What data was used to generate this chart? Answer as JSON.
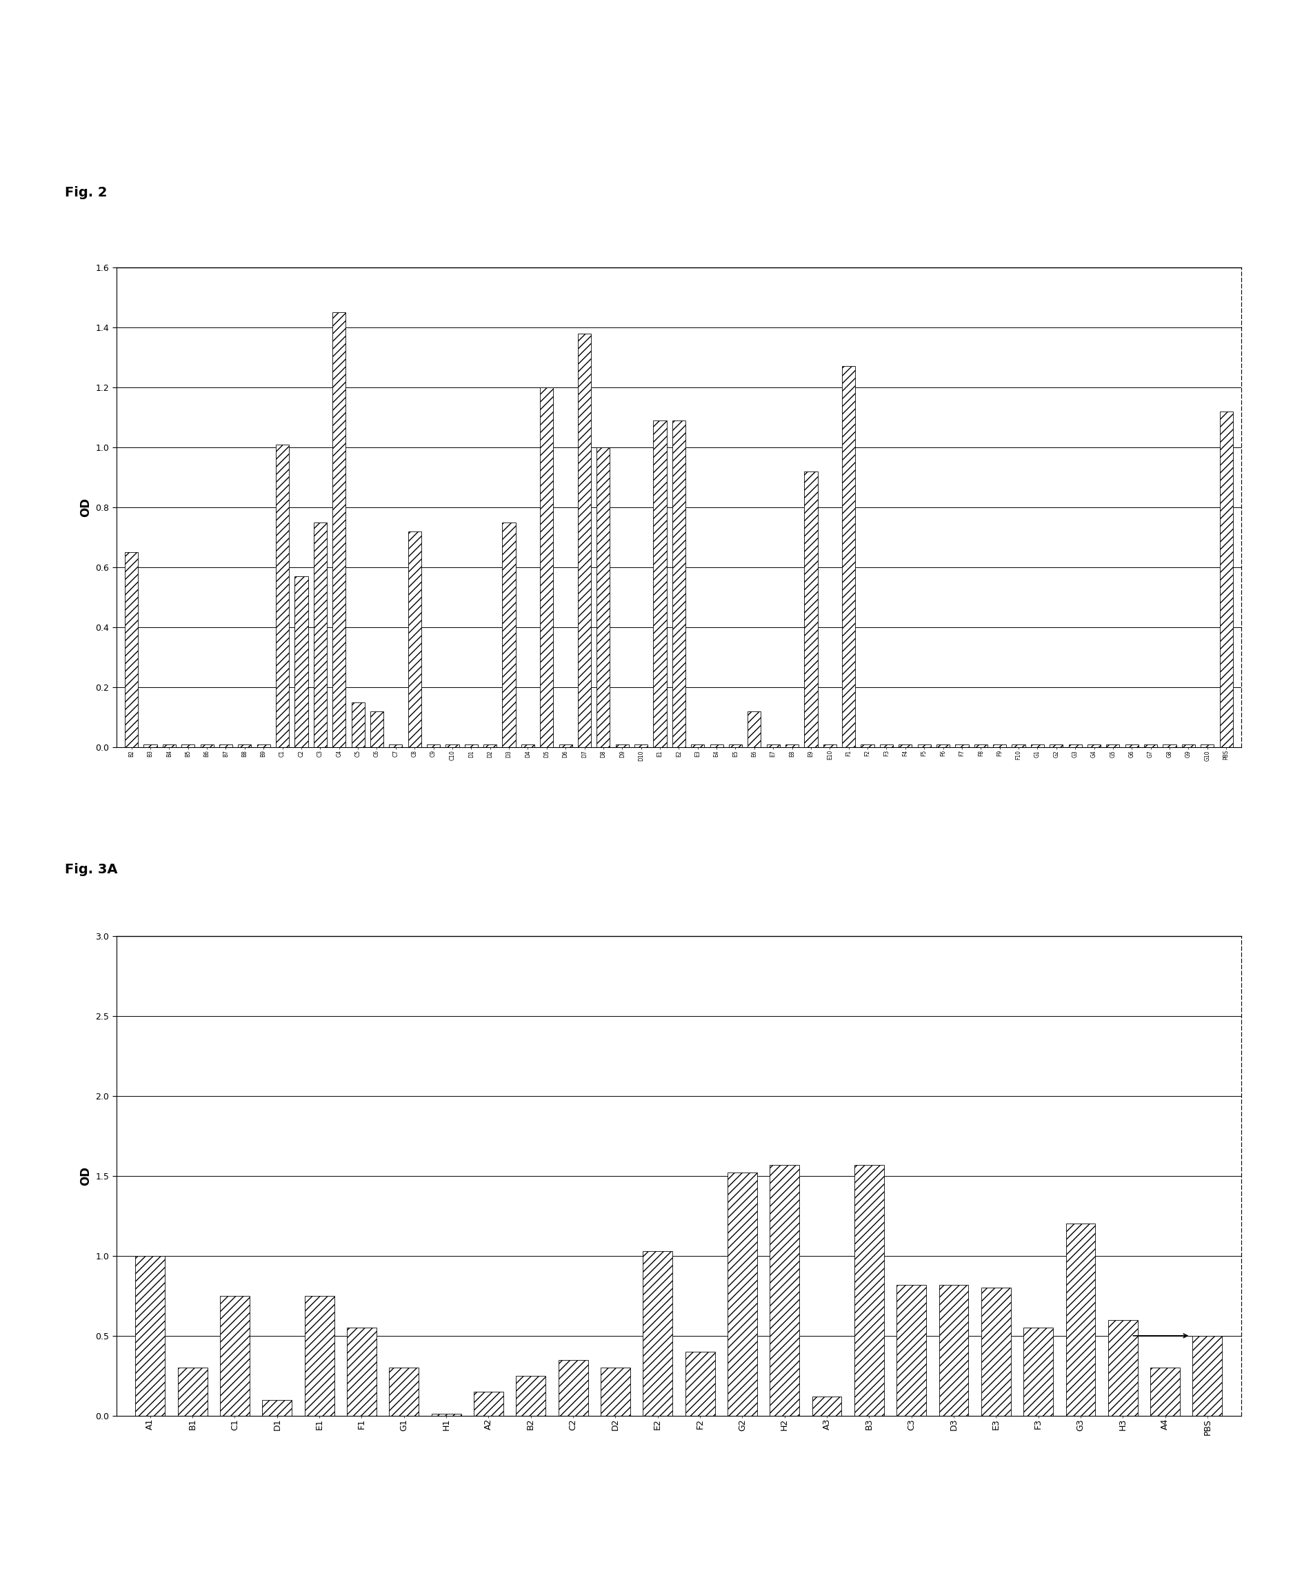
{
  "fig2": {
    "ylabel": "OD",
    "ylim": [
      0,
      1.6
    ],
    "yticks": [
      0,
      0.2,
      0.4,
      0.6,
      0.8,
      1.0,
      1.2,
      1.4,
      1.6
    ],
    "categories": [
      "B2",
      "B3",
      "B4",
      "B5",
      "B6",
      "B7",
      "B8",
      "B9",
      "C1",
      "C2",
      "C3",
      "C4",
      "C5",
      "C6",
      "C7",
      "C8",
      "C9",
      "C10",
      "D1",
      "D2",
      "D3",
      "D4",
      "D5",
      "D6",
      "D7",
      "D8",
      "D9",
      "D10",
      "E1",
      "E2",
      "E3",
      "E4",
      "E5",
      "E6",
      "E7",
      "E8",
      "E9",
      "E10",
      "F1",
      "F2",
      "F3",
      "F4",
      "F5",
      "F6",
      "F7",
      "F8",
      "F9",
      "F10",
      "G1",
      "G2",
      "G3",
      "G4",
      "G5",
      "G6",
      "G7",
      "G8",
      "G9",
      "G10",
      "PBS"
    ],
    "values": [
      0.65,
      0.01,
      0.01,
      0.01,
      0.01,
      0.01,
      0.01,
      0.01,
      1.01,
      0.57,
      0.75,
      1.45,
      0.15,
      0.12,
      0.01,
      0.72,
      0.01,
      0.01,
      0.01,
      0.01,
      0.75,
      0.01,
      1.2,
      0.01,
      1.38,
      1.0,
      0.01,
      0.01,
      1.09,
      1.09,
      0.01,
      0.01,
      0.01,
      0.12,
      0.01,
      0.01,
      0.92,
      0.01,
      1.27,
      0.01,
      0.01,
      0.01,
      0.01,
      0.01,
      0.01,
      0.01,
      0.01,
      0.01,
      0.01,
      0.01,
      0.01,
      0.01,
      0.01,
      0.01,
      0.01,
      0.01,
      0.01,
      0.01,
      1.12
    ]
  },
  "fig3a": {
    "ylabel": "OD",
    "ylim": [
      0,
      3.0
    ],
    "yticks": [
      0,
      0.5,
      1.0,
      1.5,
      2.0,
      2.5,
      3.0
    ],
    "categories": [
      "A1",
      "B1",
      "C1",
      "D1",
      "E1",
      "F1",
      "G1",
      "H1",
      "A2",
      "B2",
      "C2",
      "D2",
      "E2",
      "F2",
      "G2",
      "H2",
      "A3",
      "B3",
      "C3",
      "D3",
      "E3",
      "F3",
      "G3",
      "H3",
      "A4",
      "PBS"
    ],
    "values": [
      1.0,
      0.3,
      0.75,
      0.1,
      0.75,
      0.55,
      0.3,
      0.01,
      0.15,
      0.25,
      0.35,
      0.3,
      1.03,
      0.4,
      1.52,
      1.57,
      0.12,
      1.57,
      0.82,
      0.82,
      0.8,
      0.55,
      1.2,
      0.6,
      0.3,
      0.5
    ]
  },
  "hatch": "///",
  "fig_width": 18.75,
  "fig_height": 22.82,
  "fig2_label": "Fig. 2",
  "fig3a_label": "Fig. 3A"
}
